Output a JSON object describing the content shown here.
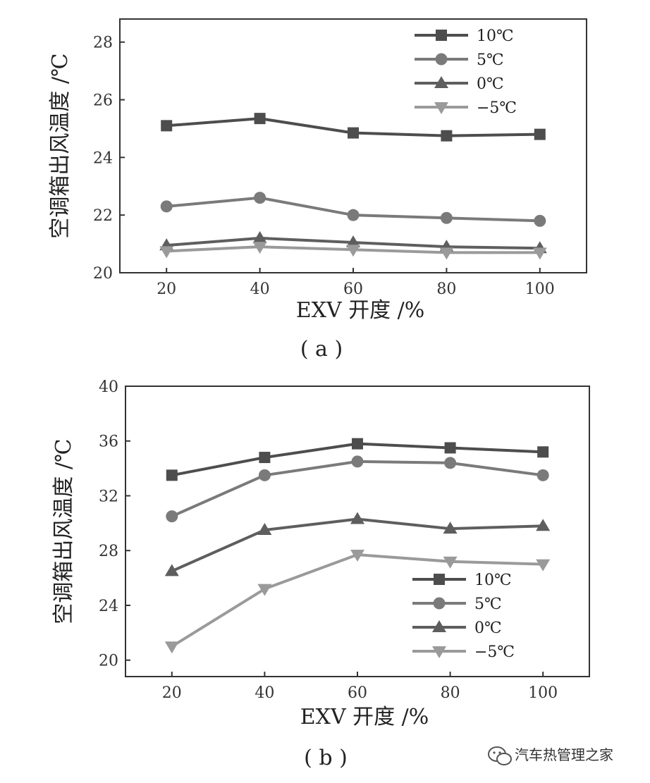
{
  "chart_data": [
    {
      "type": "line",
      "caption": "( a )",
      "xlabel": "EXV 开度 /%",
      "ylabel": "空调箱出风温度 /℃",
      "categories": [
        20,
        40,
        60,
        80,
        100
      ],
      "xlim": [
        10,
        110
      ],
      "ylim": [
        20,
        28.8
      ],
      "xticks": [
        20,
        40,
        60,
        80,
        100
      ],
      "yticks": [
        20,
        22,
        24,
        26,
        28
      ],
      "grid": false,
      "legend_position": "top-right",
      "series": [
        {
          "name": "10℃",
          "marker": "square",
          "color": "#4d4d4d",
          "values": [
            25.1,
            25.35,
            24.85,
            24.75,
            24.8
          ]
        },
        {
          "name": "5℃",
          "marker": "circle",
          "color": "#7a7a7a",
          "values": [
            22.3,
            22.6,
            22.0,
            21.9,
            21.8
          ]
        },
        {
          "name": "0℃",
          "marker": "triangle-up",
          "color": "#5e5e5e",
          "values": [
            20.95,
            21.2,
            21.05,
            20.9,
            20.85
          ]
        },
        {
          "name": "−5℃",
          "marker": "triangle-down",
          "color": "#9a9a9a",
          "values": [
            20.75,
            20.9,
            20.8,
            20.7,
            20.7
          ]
        }
      ]
    },
    {
      "type": "line",
      "caption": "( b )",
      "xlabel": "EXV 开度 /%",
      "ylabel": "空调箱出风温度 /℃",
      "categories": [
        20,
        40,
        60,
        80,
        100
      ],
      "xlim": [
        10,
        110
      ],
      "ylim": [
        18.8,
        40
      ],
      "xticks": [
        20,
        40,
        60,
        80,
        100
      ],
      "yticks": [
        20,
        24,
        28,
        32,
        36,
        40
      ],
      "grid": false,
      "legend_position": "lower-right",
      "series": [
        {
          "name": "10℃",
          "marker": "square",
          "color": "#4d4d4d",
          "values": [
            33.5,
            34.8,
            35.8,
            35.5,
            35.2
          ]
        },
        {
          "name": "5℃",
          "marker": "circle",
          "color": "#7a7a7a",
          "values": [
            30.5,
            33.5,
            34.5,
            34.4,
            33.5
          ]
        },
        {
          "name": "0℃",
          "marker": "triangle-up",
          "color": "#5e5e5e",
          "values": [
            26.5,
            29.5,
            30.3,
            29.6,
            29.8
          ]
        },
        {
          "name": "−5℃",
          "marker": "triangle-down",
          "color": "#9a9a9a",
          "values": [
            21.0,
            25.2,
            27.7,
            27.2,
            27.0
          ]
        }
      ]
    }
  ],
  "watermark": {
    "text": "汽车热管理之家",
    "icon": "wechat-icon"
  }
}
